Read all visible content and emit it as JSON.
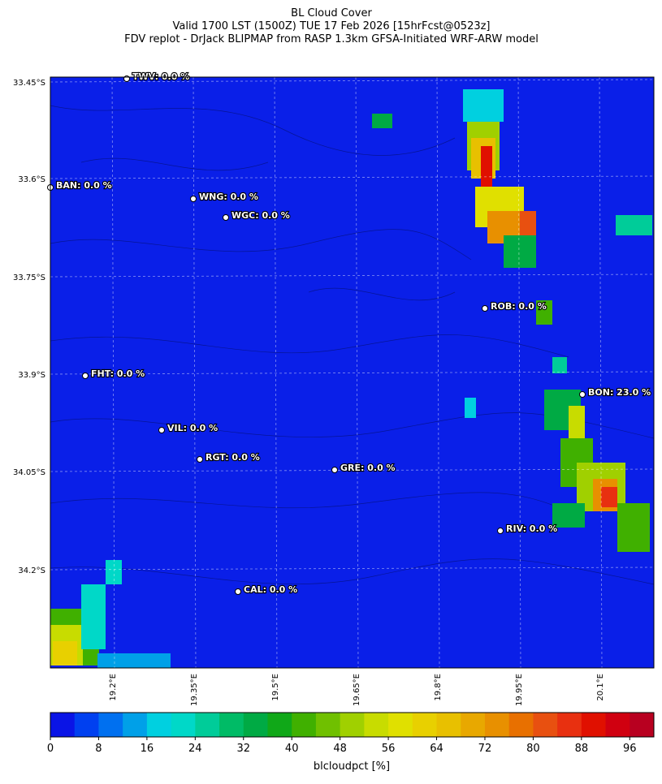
{
  "title": [
    "BL Cloud Cover",
    "Valid 1700 LST (1500Z) TUE 17 Feb 2026 [15hrFcst@0523z]",
    "FDV replot - DrJack BLIPMAP from RASP 1.3km GFSA-Initiated WRF-ARW model"
  ],
  "lat_ticks": [
    "33.45°S",
    "33.6°S",
    "33.75°S",
    "33.9°S",
    "34.05°S",
    "34.2°S"
  ],
  "lon_ticks": [
    "19.2°E",
    "19.35°E",
    "19.5°E",
    "19.65°E",
    "19.8°E",
    "19.95°E",
    "20.1°E"
  ],
  "stations": [
    "TWV: 0.0 %",
    "BAN: 0.0 %",
    "WNG: 0.0 %",
    "WGC: 0.0 %",
    "ROB: 0.0 %",
    "FHT: 0.0 %",
    "BON: 23.0 %",
    "VIL: 0.0 %",
    "RGT: 0.0 %",
    "GRE: 0.0 %",
    "RIV: 0.0 %",
    "CAL: 0.0 %"
  ],
  "colorbar": {
    "label": "blcloudpct [%]",
    "lim": [
      0,
      100
    ],
    "ticks": [
      0,
      8,
      16,
      24,
      32,
      40,
      48,
      56,
      64,
      72,
      80,
      88,
      96
    ],
    "colors": [
      "#0a14e6",
      "#0040f0",
      "#0070f0",
      "#00a0e8",
      "#00d0e0",
      "#00d8c8",
      "#00cc99",
      "#00bb66",
      "#00aa44",
      "#10a818",
      "#40b000",
      "#70c000",
      "#a0d000",
      "#c8dc00",
      "#e0e000",
      "#e8d000",
      "#e8c000",
      "#e8a800",
      "#e89000",
      "#e87000",
      "#e85010",
      "#e83010",
      "#e01000",
      "#d00010",
      "#b80020"
    ]
  }
}
